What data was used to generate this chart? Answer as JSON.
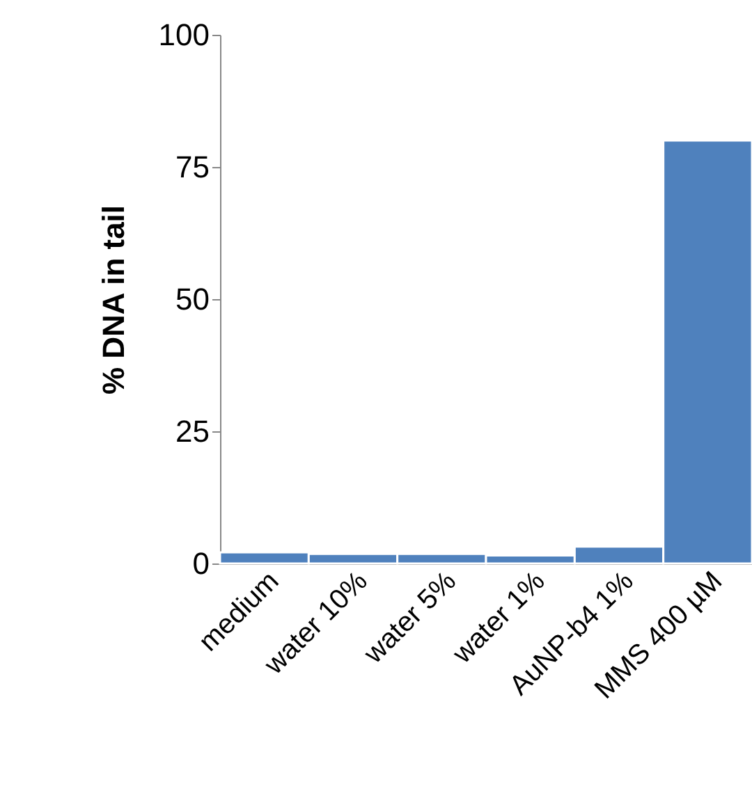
{
  "chart_data": {
    "type": "bar",
    "ylabel": "% DNA in tail",
    "categories": [
      "medium",
      "water 10%",
      "water 5%",
      "water 1%",
      "AuNP-b4 1%",
      "MMS 400 µM"
    ],
    "values": [
      2.1,
      1.8,
      1.8,
      1.5,
      3.2,
      80
    ],
    "color": "#4f81bd",
    "ylim": [
      0,
      100
    ],
    "yticks": [
      0,
      25,
      50,
      75,
      100
    ],
    "grid": false
  }
}
